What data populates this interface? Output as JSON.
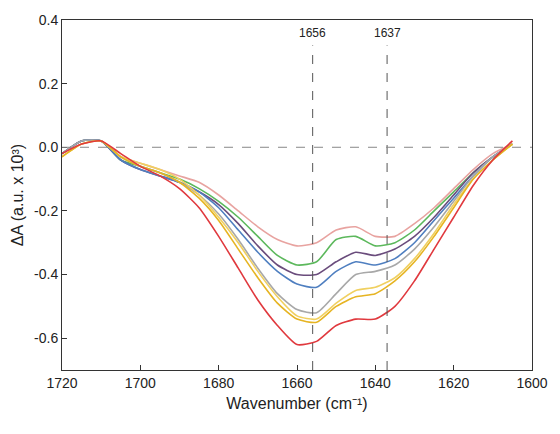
{
  "chart_data": {
    "type": "line",
    "x_label": "Wavenumber (cm⁻¹)",
    "y_label": "ΔA (a.u. x 10³)",
    "x": [
      1720,
      1715,
      1710,
      1705,
      1700,
      1695,
      1690,
      1685,
      1680,
      1675,
      1670,
      1665,
      1660,
      1655,
      1650,
      1645,
      1640,
      1635,
      1630,
      1625,
      1620,
      1615,
      1610,
      1605
    ],
    "series": [
      {
        "color": "#e8a3a0",
        "values": [
          -0.02,
          0.02,
          0.02,
          -0.03,
          -0.05,
          -0.07,
          -0.09,
          -0.11,
          -0.15,
          -0.2,
          -0.25,
          -0.29,
          -0.31,
          -0.3,
          -0.26,
          -0.25,
          -0.28,
          -0.28,
          -0.24,
          -0.19,
          -0.13,
          -0.07,
          -0.02,
          0.01
        ]
      },
      {
        "color": "#5cb85c",
        "values": [
          -0.02,
          0.02,
          0.02,
          -0.04,
          -0.06,
          -0.08,
          -0.1,
          -0.13,
          -0.17,
          -0.22,
          -0.28,
          -0.34,
          -0.37,
          -0.36,
          -0.29,
          -0.28,
          -0.31,
          -0.3,
          -0.26,
          -0.2,
          -0.14,
          -0.08,
          -0.03,
          0.01
        ]
      },
      {
        "color": "#6a4c7c",
        "values": [
          -0.02,
          0.02,
          0.02,
          -0.04,
          -0.07,
          -0.09,
          -0.11,
          -0.14,
          -0.18,
          -0.24,
          -0.31,
          -0.37,
          -0.4,
          -0.4,
          -0.36,
          -0.33,
          -0.34,
          -0.32,
          -0.28,
          -0.22,
          -0.15,
          -0.08,
          -0.03,
          0.01
        ]
      },
      {
        "color": "#4f7fc0",
        "values": [
          -0.02,
          0.02,
          0.02,
          -0.04,
          -0.07,
          -0.09,
          -0.11,
          -0.14,
          -0.19,
          -0.26,
          -0.33,
          -0.39,
          -0.43,
          -0.44,
          -0.39,
          -0.36,
          -0.37,
          -0.35,
          -0.3,
          -0.23,
          -0.16,
          -0.09,
          -0.03,
          0.01
        ]
      },
      {
        "color": "#a8a8a8",
        "values": [
          -0.02,
          0.02,
          0.02,
          -0.03,
          -0.06,
          -0.08,
          -0.11,
          -0.15,
          -0.21,
          -0.29,
          -0.38,
          -0.46,
          -0.51,
          -0.52,
          -0.46,
          -0.4,
          -0.39,
          -0.37,
          -0.32,
          -0.25,
          -0.17,
          -0.09,
          -0.03,
          0.01
        ]
      },
      {
        "color": "#f0d060",
        "values": [
          -0.03,
          0.01,
          0.02,
          -0.03,
          -0.05,
          -0.07,
          -0.1,
          -0.15,
          -0.22,
          -0.3,
          -0.39,
          -0.47,
          -0.53,
          -0.54,
          -0.49,
          -0.45,
          -0.44,
          -0.41,
          -0.35,
          -0.27,
          -0.18,
          -0.1,
          -0.04,
          0.01
        ]
      },
      {
        "color": "#e6b422",
        "values": [
          -0.03,
          0.01,
          0.02,
          -0.03,
          -0.06,
          -0.08,
          -0.11,
          -0.16,
          -0.23,
          -0.32,
          -0.41,
          -0.49,
          -0.54,
          -0.55,
          -0.5,
          -0.47,
          -0.46,
          -0.42,
          -0.36,
          -0.28,
          -0.19,
          -0.1,
          -0.04,
          0.01
        ]
      },
      {
        "color": "#e0393e",
        "values": [
          -0.02,
          0.01,
          0.02,
          -0.02,
          -0.06,
          -0.09,
          -0.13,
          -0.19,
          -0.28,
          -0.38,
          -0.48,
          -0.56,
          -0.62,
          -0.61,
          -0.56,
          -0.54,
          -0.54,
          -0.5,
          -0.42,
          -0.32,
          -0.22,
          -0.12,
          -0.04,
          0.02
        ]
      }
    ],
    "xlim": [
      1720,
      1600
    ],
    "xticks": [
      1720,
      1700,
      1680,
      1660,
      1640,
      1620,
      1600
    ],
    "ylim": [
      -0.7,
      0.4
    ],
    "yticks": [
      -0.6,
      -0.4,
      -0.2,
      {
        "value": 0,
        "label": "0.0"
      },
      0.2,
      0.4
    ],
    "vlines": [
      1656,
      1637
    ],
    "hlines": [
      0
    ],
    "grid": false
  }
}
